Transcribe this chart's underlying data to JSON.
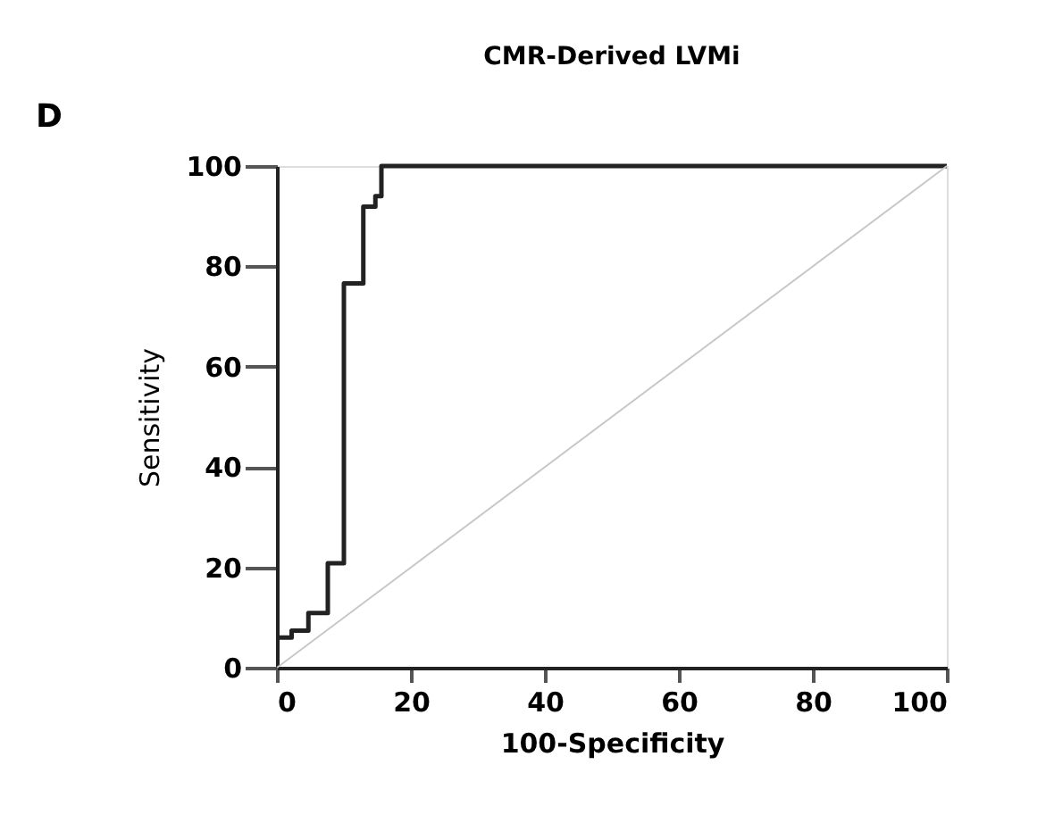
{
  "chart_data": {
    "type": "step",
    "title": "CMR-Derived LVMi",
    "xlabel": "100-Specificity",
    "ylabel": "Sensitivity",
    "annotations": [
      "D"
    ],
    "xlim": [
      0,
      100
    ],
    "ylim": [
      0,
      100
    ],
    "xticks": [
      0,
      20,
      40,
      60,
      80,
      100
    ],
    "yticks": [
      0,
      20,
      40,
      60,
      80,
      100
    ],
    "grid": false,
    "series": [
      {
        "color": "#222222",
        "x": [
          0,
          2.2,
          4.7,
          7.6,
          10,
          12.9,
          14.7,
          15.6,
          100
        ],
        "values": [
          6,
          7.4,
          10.9,
          20.8,
          76.6,
          91.9,
          94,
          100,
          100
        ]
      },
      {
        "type": "line",
        "color": "#c8c8c8",
        "x": [
          0,
          100
        ],
        "values": [
          0,
          100
        ]
      }
    ]
  }
}
